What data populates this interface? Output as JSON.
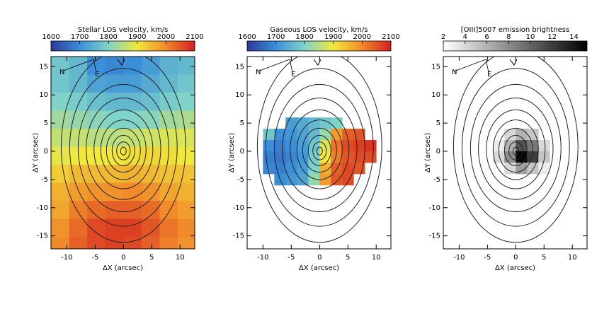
{
  "chart_data": [
    {
      "type": "heatmap",
      "title": "Stellar LOS velocity, km/s",
      "xlabel": "ΔX (arcsec)",
      "ylabel": "ΔY (arcsec)",
      "xlim": [
        -12.8,
        12.6
      ],
      "ylim": [
        -17.3,
        16.8
      ],
      "xticks": [
        -10,
        -5,
        0,
        5,
        10
      ],
      "yticks": [
        -15,
        -10,
        -5,
        0,
        5,
        10,
        15
      ],
      "clim": [
        1600,
        2100
      ],
      "cticks": [
        1600,
        1700,
        1800,
        1900,
        2000,
        2100
      ],
      "colormap": [
        "#2b3a9a",
        "#3a8fd8",
        "#7fd3c8",
        "#f0e83a",
        "#f08a2a",
        "#d42020"
      ],
      "annotations": [
        "N",
        "E"
      ],
      "x": [
        -11.2,
        -8.0,
        -4.8,
        -1.6,
        1.6,
        4.8,
        8.0,
        11.2
      ],
      "y": [
        15.2,
        12,
        8.8,
        5.6,
        2.4,
        -0.8,
        -4,
        -7.2,
        -10.4,
        -13.6,
        -16.8
      ],
      "z": [
        [
          1780,
          1760,
          1700,
          1690,
          1700,
          1720,
          1750,
          1760
        ],
        [
          1780,
          1760,
          1730,
          1720,
          1720,
          1740,
          1760,
          1780
        ],
        [
          1800,
          1790,
          1770,
          1760,
          1760,
          1770,
          1790,
          1800
        ],
        [
          1830,
          1820,
          1810,
          1800,
          1800,
          1810,
          1830,
          1840
        ],
        [
          1860,
          1860,
          1850,
          1850,
          1860,
          1870,
          1880,
          1880
        ],
        [
          1890,
          1900,
          1900,
          1900,
          1910,
          1920,
          1910,
          1900
        ],
        [
          1930,
          1950,
          1950,
          1950,
          1960,
          1950,
          1940,
          1940
        ],
        [
          1960,
          1980,
          1990,
          1990,
          2000,
          1990,
          1970,
          1960
        ],
        [
          1970,
          2010,
          2030,
          2040,
          2040,
          2030,
          2000,
          1980
        ],
        [
          1990,
          2030,
          2060,
          2070,
          2070,
          2050,
          2020,
          2000
        ],
        [
          2000,
          2040,
          2060,
          2070,
          2060,
          2040,
          2010,
          1990
        ]
      ]
    },
    {
      "type": "heatmap",
      "title": "Gaseous LOS velocity, km/s",
      "xlabel": "ΔX (arcsec)",
      "ylabel": "ΔY (arcsec)",
      "xlim": [
        -12.8,
        12.6
      ],
      "ylim": [
        -17.3,
        16.8
      ],
      "xticks": [
        -10,
        -5,
        0,
        5,
        10
      ],
      "yticks": [
        -15,
        -10,
        -5,
        0,
        5,
        10,
        15
      ],
      "clim": [
        1600,
        2100
      ],
      "cticks": [
        1600,
        1700,
        1800,
        1900,
        2000,
        2100
      ],
      "colormap": [
        "#2b3a9a",
        "#3a8fd8",
        "#7fd3c8",
        "#f0e83a",
        "#f08a2a",
        "#d42020"
      ],
      "annotations": [
        "N",
        "E"
      ],
      "x": [
        -9,
        -7,
        -5,
        -3,
        -1,
        1,
        3,
        5,
        7,
        9
      ],
      "y": [
        5,
        3,
        1,
        -1,
        -3,
        -5
      ],
      "z": [
        [
          null,
          null,
          1720,
          1740,
          1760,
          1780,
          1800,
          null,
          null,
          null
        ],
        [
          1780,
          1700,
          1710,
          1730,
          1760,
          1820,
          1980,
          2040,
          2050,
          null
        ],
        [
          1700,
          1680,
          1700,
          1720,
          1780,
          1880,
          2020,
          2060,
          2070,
          2080
        ],
        [
          1680,
          1670,
          1690,
          1710,
          1790,
          1900,
          2010,
          2050,
          2060,
          2060
        ],
        [
          1690,
          1680,
          1700,
          1720,
          1800,
          1960,
          2040,
          2060,
          2050,
          null
        ],
        [
          null,
          1700,
          1710,
          1730,
          1820,
          1980,
          2050,
          2060,
          null,
          null
        ]
      ]
    },
    {
      "type": "heatmap",
      "title": "[OIII]5007 emission brightness",
      "xlabel": "ΔX (arcsec)",
      "ylabel": "ΔY (arcsec)",
      "xlim": [
        -12.8,
        12.6
      ],
      "ylim": [
        -17.3,
        16.8
      ],
      "xticks": [
        -10,
        -5,
        0,
        5,
        10
      ],
      "yticks": [
        -15,
        -10,
        -5,
        0,
        5,
        10,
        15
      ],
      "clim": [
        2,
        15.2
      ],
      "cticks": [
        2,
        4,
        6,
        8,
        10,
        12,
        14
      ],
      "colormap": [
        "#ffffff",
        "#000000"
      ],
      "annotations": [
        "N",
        "E"
      ],
      "x": [
        -3,
        -1,
        1,
        3,
        5
      ],
      "y": [
        3,
        1,
        -1,
        -3
      ],
      "z": [
        [
          null,
          4,
          6,
          5,
          null
        ],
        [
          3,
          6,
          11,
          9,
          4
        ],
        [
          4,
          8,
          15,
          12,
          5
        ],
        [
          null,
          4,
          7,
          5,
          3
        ]
      ]
    }
  ]
}
